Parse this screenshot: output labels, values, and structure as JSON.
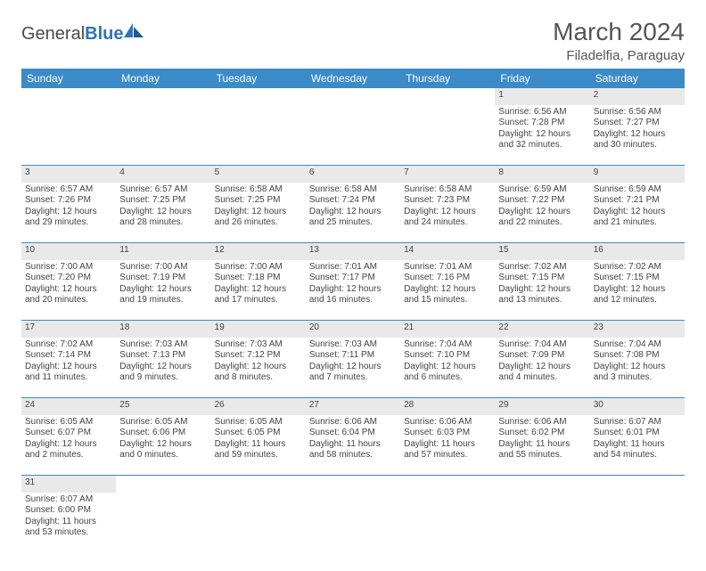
{
  "brand": {
    "part1": "General",
    "part2": "Blue"
  },
  "title": "March 2024",
  "location": "Filadelfia, Paraguay",
  "colors": {
    "header_bg": "#3b8bc8",
    "header_text": "#ffffff",
    "daynum_bg": "#e9e9e9",
    "border": "#3b8bc8",
    "text": "#444444",
    "logo_blue": "#2f75b5"
  },
  "weekdays": [
    "Sunday",
    "Monday",
    "Tuesday",
    "Wednesday",
    "Thursday",
    "Friday",
    "Saturday"
  ],
  "weeks": [
    [
      null,
      null,
      null,
      null,
      null,
      {
        "n": "1",
        "sr": "Sunrise: 6:56 AM",
        "ss": "Sunset: 7:28 PM",
        "d1": "Daylight: 12 hours",
        "d2": "and 32 minutes."
      },
      {
        "n": "2",
        "sr": "Sunrise: 6:56 AM",
        "ss": "Sunset: 7:27 PM",
        "d1": "Daylight: 12 hours",
        "d2": "and 30 minutes."
      }
    ],
    [
      {
        "n": "3",
        "sr": "Sunrise: 6:57 AM",
        "ss": "Sunset: 7:26 PM",
        "d1": "Daylight: 12 hours",
        "d2": "and 29 minutes."
      },
      {
        "n": "4",
        "sr": "Sunrise: 6:57 AM",
        "ss": "Sunset: 7:25 PM",
        "d1": "Daylight: 12 hours",
        "d2": "and 28 minutes."
      },
      {
        "n": "5",
        "sr": "Sunrise: 6:58 AM",
        "ss": "Sunset: 7:25 PM",
        "d1": "Daylight: 12 hours",
        "d2": "and 26 minutes."
      },
      {
        "n": "6",
        "sr": "Sunrise: 6:58 AM",
        "ss": "Sunset: 7:24 PM",
        "d1": "Daylight: 12 hours",
        "d2": "and 25 minutes."
      },
      {
        "n": "7",
        "sr": "Sunrise: 6:58 AM",
        "ss": "Sunset: 7:23 PM",
        "d1": "Daylight: 12 hours",
        "d2": "and 24 minutes."
      },
      {
        "n": "8",
        "sr": "Sunrise: 6:59 AM",
        "ss": "Sunset: 7:22 PM",
        "d1": "Daylight: 12 hours",
        "d2": "and 22 minutes."
      },
      {
        "n": "9",
        "sr": "Sunrise: 6:59 AM",
        "ss": "Sunset: 7:21 PM",
        "d1": "Daylight: 12 hours",
        "d2": "and 21 minutes."
      }
    ],
    [
      {
        "n": "10",
        "sr": "Sunrise: 7:00 AM",
        "ss": "Sunset: 7:20 PM",
        "d1": "Daylight: 12 hours",
        "d2": "and 20 minutes."
      },
      {
        "n": "11",
        "sr": "Sunrise: 7:00 AM",
        "ss": "Sunset: 7:19 PM",
        "d1": "Daylight: 12 hours",
        "d2": "and 19 minutes."
      },
      {
        "n": "12",
        "sr": "Sunrise: 7:00 AM",
        "ss": "Sunset: 7:18 PM",
        "d1": "Daylight: 12 hours",
        "d2": "and 17 minutes."
      },
      {
        "n": "13",
        "sr": "Sunrise: 7:01 AM",
        "ss": "Sunset: 7:17 PM",
        "d1": "Daylight: 12 hours",
        "d2": "and 16 minutes."
      },
      {
        "n": "14",
        "sr": "Sunrise: 7:01 AM",
        "ss": "Sunset: 7:16 PM",
        "d1": "Daylight: 12 hours",
        "d2": "and 15 minutes."
      },
      {
        "n": "15",
        "sr": "Sunrise: 7:02 AM",
        "ss": "Sunset: 7:15 PM",
        "d1": "Daylight: 12 hours",
        "d2": "and 13 minutes."
      },
      {
        "n": "16",
        "sr": "Sunrise: 7:02 AM",
        "ss": "Sunset: 7:15 PM",
        "d1": "Daylight: 12 hours",
        "d2": "and 12 minutes."
      }
    ],
    [
      {
        "n": "17",
        "sr": "Sunrise: 7:02 AM",
        "ss": "Sunset: 7:14 PM",
        "d1": "Daylight: 12 hours",
        "d2": "and 11 minutes."
      },
      {
        "n": "18",
        "sr": "Sunrise: 7:03 AM",
        "ss": "Sunset: 7:13 PM",
        "d1": "Daylight: 12 hours",
        "d2": "and 9 minutes."
      },
      {
        "n": "19",
        "sr": "Sunrise: 7:03 AM",
        "ss": "Sunset: 7:12 PM",
        "d1": "Daylight: 12 hours",
        "d2": "and 8 minutes."
      },
      {
        "n": "20",
        "sr": "Sunrise: 7:03 AM",
        "ss": "Sunset: 7:11 PM",
        "d1": "Daylight: 12 hours",
        "d2": "and 7 minutes."
      },
      {
        "n": "21",
        "sr": "Sunrise: 7:04 AM",
        "ss": "Sunset: 7:10 PM",
        "d1": "Daylight: 12 hours",
        "d2": "and 6 minutes."
      },
      {
        "n": "22",
        "sr": "Sunrise: 7:04 AM",
        "ss": "Sunset: 7:09 PM",
        "d1": "Daylight: 12 hours",
        "d2": "and 4 minutes."
      },
      {
        "n": "23",
        "sr": "Sunrise: 7:04 AM",
        "ss": "Sunset: 7:08 PM",
        "d1": "Daylight: 12 hours",
        "d2": "and 3 minutes."
      }
    ],
    [
      {
        "n": "24",
        "sr": "Sunrise: 6:05 AM",
        "ss": "Sunset: 6:07 PM",
        "d1": "Daylight: 12 hours",
        "d2": "and 2 minutes."
      },
      {
        "n": "25",
        "sr": "Sunrise: 6:05 AM",
        "ss": "Sunset: 6:06 PM",
        "d1": "Daylight: 12 hours",
        "d2": "and 0 minutes."
      },
      {
        "n": "26",
        "sr": "Sunrise: 6:05 AM",
        "ss": "Sunset: 6:05 PM",
        "d1": "Daylight: 11 hours",
        "d2": "and 59 minutes."
      },
      {
        "n": "27",
        "sr": "Sunrise: 6:06 AM",
        "ss": "Sunset: 6:04 PM",
        "d1": "Daylight: 11 hours",
        "d2": "and 58 minutes."
      },
      {
        "n": "28",
        "sr": "Sunrise: 6:06 AM",
        "ss": "Sunset: 6:03 PM",
        "d1": "Daylight: 11 hours",
        "d2": "and 57 minutes."
      },
      {
        "n": "29",
        "sr": "Sunrise: 6:06 AM",
        "ss": "Sunset: 6:02 PM",
        "d1": "Daylight: 11 hours",
        "d2": "and 55 minutes."
      },
      {
        "n": "30",
        "sr": "Sunrise: 6:07 AM",
        "ss": "Sunset: 6:01 PM",
        "d1": "Daylight: 11 hours",
        "d2": "and 54 minutes."
      }
    ],
    [
      {
        "n": "31",
        "sr": "Sunrise: 6:07 AM",
        "ss": "Sunset: 6:00 PM",
        "d1": "Daylight: 11 hours",
        "d2": "and 53 minutes."
      },
      null,
      null,
      null,
      null,
      null,
      null
    ]
  ]
}
